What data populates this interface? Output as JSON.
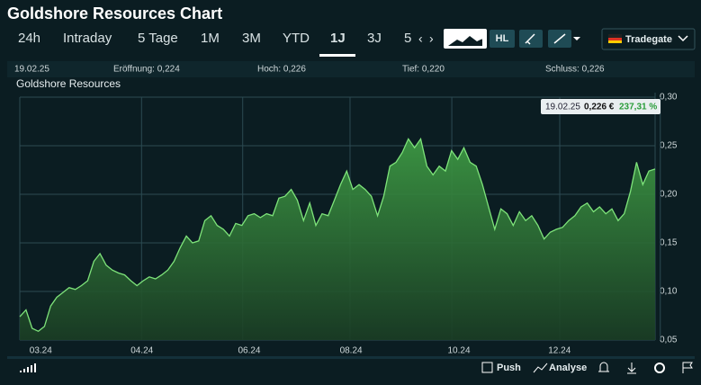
{
  "ui": {
    "title": "Goldshore Resources Chart",
    "tabs": [
      "24h",
      "Intraday",
      "5 Tage",
      "1M",
      "3M",
      "YTD",
      "1J",
      "3J",
      "5"
    ],
    "active_tab": "1J",
    "hl_button": "HL",
    "exchange": "Tradegate",
    "info": {
      "date": "19.02.25",
      "open": "Eröffnung: 0,224",
      "high": "Hoch: 0,226",
      "low": "Tief: 0,220",
      "close": "Schluss: 0,226"
    },
    "footer": {
      "push": "Push",
      "analyse": "Analyse"
    }
  },
  "chart_data": {
    "type": "area",
    "title": "Goldshore Resources",
    "color": "#7ee37a",
    "tooltip": {
      "date": "19.02.25",
      "price": "0,226 €",
      "change": "237,31 %"
    },
    "values": [
      0.074,
      0.081,
      0.062,
      0.059,
      0.064,
      0.085,
      0.094,
      0.099,
      0.104,
      0.102,
      0.106,
      0.111,
      0.131,
      0.139,
      0.127,
      0.122,
      0.119,
      0.117,
      0.111,
      0.106,
      0.111,
      0.115,
      0.113,
      0.117,
      0.122,
      0.131,
      0.145,
      0.157,
      0.15,
      0.152,
      0.173,
      0.178,
      0.168,
      0.164,
      0.157,
      0.17,
      0.168,
      0.178,
      0.18,
      0.176,
      0.18,
      0.178,
      0.196,
      0.198,
      0.205,
      0.194,
      0.173,
      0.191,
      0.168,
      0.18,
      0.178,
      0.194,
      0.21,
      0.224,
      0.205,
      0.21,
      0.205,
      0.198,
      0.178,
      0.198,
      0.229,
      0.233,
      0.243,
      0.257,
      0.248,
      0.257,
      0.229,
      0.22,
      0.229,
      0.224,
      0.245,
      0.236,
      0.248,
      0.233,
      0.229,
      0.21,
      0.187,
      0.164,
      0.185,
      0.18,
      0.168,
      0.182,
      0.173,
      0.178,
      0.168,
      0.154,
      0.161,
      0.164,
      0.166,
      0.173,
      0.178,
      0.187,
      0.191,
      0.182,
      0.187,
      0.18,
      0.185,
      0.173,
      0.18,
      0.203,
      0.233,
      0.21,
      0.224,
      0.226
    ],
    "xlim": [
      0,
      103
    ],
    "xticks": [
      {
        "value": 3.4,
        "label": "03.24"
      },
      {
        "value": 19.8,
        "label": "04.24"
      },
      {
        "value": 37.2,
        "label": "06.24"
      },
      {
        "value": 53.7,
        "label": "08.24"
      },
      {
        "value": 71.2,
        "label": "10.24"
      },
      {
        "value": 87.5,
        "label": "12.24"
      }
    ],
    "ylim": [
      0.05,
      0.3
    ],
    "yticks": [
      {
        "value": 0.05,
        "label": "0,05"
      },
      {
        "value": 0.1,
        "label": "0,10"
      },
      {
        "value": 0.15,
        "label": "0,15"
      },
      {
        "value": 0.2,
        "label": "0,20"
      },
      {
        "value": 0.25,
        "label": "0,25"
      },
      {
        "value": 0.3,
        "label": "0,30"
      }
    ],
    "grid": true
  }
}
